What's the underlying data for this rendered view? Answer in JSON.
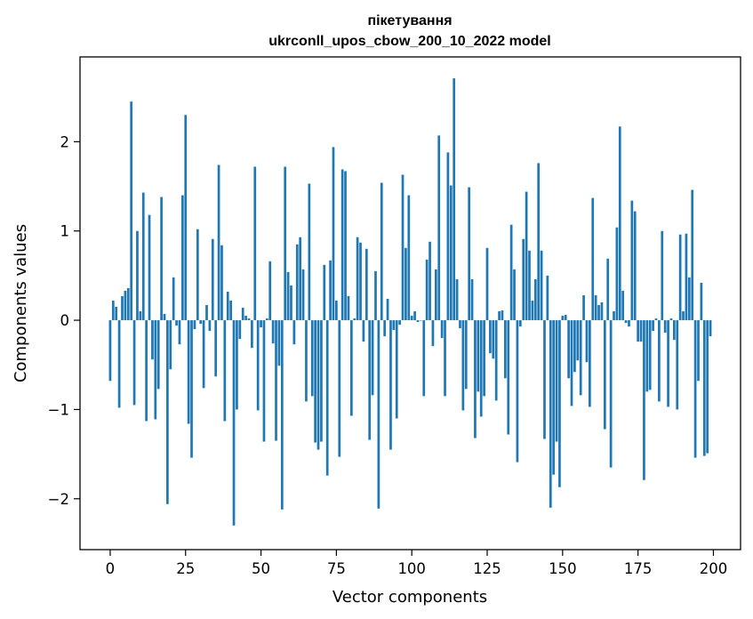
{
  "chart_data": {
    "type": "bar",
    "title_line1": "пікетування",
    "title_line2": "ukrconll_upos_cbow_200_10_2022 model",
    "xlabel": "Vector components",
    "ylabel": "Components values",
    "xlim": [
      -10,
      209
    ],
    "ylim": [
      -2.57,
      2.95
    ],
    "xticks": [
      0,
      25,
      50,
      75,
      100,
      125,
      150,
      175,
      200
    ],
    "xtick_labels": [
      "0",
      "25",
      "50",
      "75",
      "100",
      "125",
      "150",
      "175",
      "200"
    ],
    "yticks": [
      -2,
      -1,
      0,
      1,
      2
    ],
    "ytick_labels": [
      "−2",
      "−1",
      "0",
      "1",
      "2"
    ],
    "bar_color": "#1f77b4",
    "grid": false,
    "x": [
      0,
      1,
      2,
      3,
      4,
      5,
      6,
      7,
      8,
      9,
      10,
      11,
      12,
      13,
      14,
      15,
      16,
      17,
      18,
      19,
      20,
      21,
      22,
      23,
      24,
      25,
      26,
      27,
      28,
      29,
      30,
      31,
      32,
      33,
      34,
      35,
      36,
      37,
      38,
      39,
      40,
      41,
      42,
      43,
      44,
      45,
      46,
      47,
      48,
      49,
      50,
      51,
      52,
      53,
      54,
      55,
      56,
      57,
      58,
      59,
      60,
      61,
      62,
      63,
      64,
      65,
      66,
      67,
      68,
      69,
      70,
      71,
      72,
      73,
      74,
      75,
      76,
      77,
      78,
      79,
      80,
      81,
      82,
      83,
      84,
      85,
      86,
      87,
      88,
      89,
      90,
      91,
      92,
      93,
      94,
      95,
      96,
      97,
      98,
      99,
      100,
      101,
      102,
      103,
      104,
      105,
      106,
      107,
      108,
      109,
      110,
      111,
      112,
      113,
      114,
      115,
      116,
      117,
      118,
      119,
      120,
      121,
      122,
      123,
      124,
      125,
      126,
      127,
      128,
      129,
      130,
      131,
      132,
      133,
      134,
      135,
      136,
      137,
      138,
      139,
      140,
      141,
      142,
      143,
      144,
      145,
      146,
      147,
      148,
      149,
      150,
      151,
      152,
      153,
      154,
      155,
      156,
      157,
      158,
      159,
      160,
      161,
      162,
      163,
      164,
      165,
      166,
      167,
      168,
      169,
      170,
      171,
      172,
      173,
      174,
      175,
      176,
      177,
      178,
      179,
      180,
      181,
      182,
      183,
      184,
      185,
      186,
      187,
      188,
      189,
      190,
      191,
      192,
      193,
      194,
      195,
      196,
      197,
      198,
      199
    ],
    "values": [
      -0.68,
      0.22,
      0.15,
      -0.98,
      0.27,
      0.33,
      0.36,
      2.45,
      -0.95,
      1.0,
      0.1,
      1.43,
      -1.13,
      1.18,
      -0.44,
      -1.11,
      -0.77,
      1.38,
      0.07,
      -2.06,
      -0.55,
      0.48,
      -0.06,
      -0.27,
      1.4,
      2.3,
      -1.16,
      -1.54,
      -0.1,
      1.02,
      -0.04,
      -0.76,
      0.17,
      -0.12,
      0.91,
      -0.63,
      1.74,
      0.84,
      -1.13,
      0.32,
      0.22,
      -2.3,
      -1.0,
      -0.21,
      0.14,
      0.05,
      0.02,
      -0.31,
      1.72,
      -1.01,
      -0.08,
      -1.36,
      0.02,
      0.66,
      -0.26,
      -1.35,
      -0.51,
      -2.12,
      1.72,
      0.54,
      0.39,
      -0.27,
      0.85,
      0.93,
      0.57,
      -0.91,
      1.53,
      -0.85,
      -1.37,
      -1.45,
      -1.36,
      0.62,
      -1.74,
      0.67,
      1.94,
      0.22,
      -1.53,
      1.69,
      1.67,
      0.27,
      -1.07,
      0.02,
      0.93,
      0.87,
      -0.24,
      0.8,
      -1.34,
      -0.84,
      0.55,
      -2.11,
      1.54,
      -0.18,
      0.24,
      -1.45,
      -0.11,
      -1.1,
      -0.05,
      1.63,
      0.81,
      1.4,
      0.05,
      0.1,
      -0.02,
      0.0,
      -0.85,
      0.68,
      0.88,
      -0.29,
      0.57,
      2.07,
      -0.2,
      -0.85,
      1.88,
      1.51,
      2.71,
      0.46,
      -0.09,
      -1.01,
      -0.77,
      1.49,
      0.46,
      -1.32,
      -0.8,
      -1.08,
      -0.85,
      0.81,
      -0.37,
      -0.43,
      -0.9,
      0.1,
      0.11,
      -0.65,
      -1.28,
      1.07,
      0.57,
      -1.59,
      -0.07,
      0.91,
      1.44,
      0.78,
      0.22,
      0.46,
      1.76,
      0.78,
      -1.33,
      0.5,
      -2.1,
      -1.73,
      -1.36,
      -1.87,
      0.05,
      0.06,
      -0.65,
      -0.96,
      -0.58,
      -0.45,
      -0.84,
      0.28,
      -0.47,
      -0.97,
      1.37,
      0.28,
      0.17,
      0.2,
      -1.22,
      0.69,
      -1.65,
      0.1,
      1.04,
      2.17,
      0.33,
      -0.03,
      -0.07,
      1.34,
      1.22,
      -0.24,
      -0.24,
      -1.79,
      -0.8,
      -0.78,
      -0.12,
      0.02,
      -0.91,
      1.0,
      -0.14,
      -0.97,
      0.02,
      -0.22,
      -1.0,
      0.96,
      0.1,
      0.97,
      0.48,
      1.46,
      -1.54,
      -0.68,
      0.42,
      -1.52,
      -1.49,
      -0.18
    ]
  }
}
